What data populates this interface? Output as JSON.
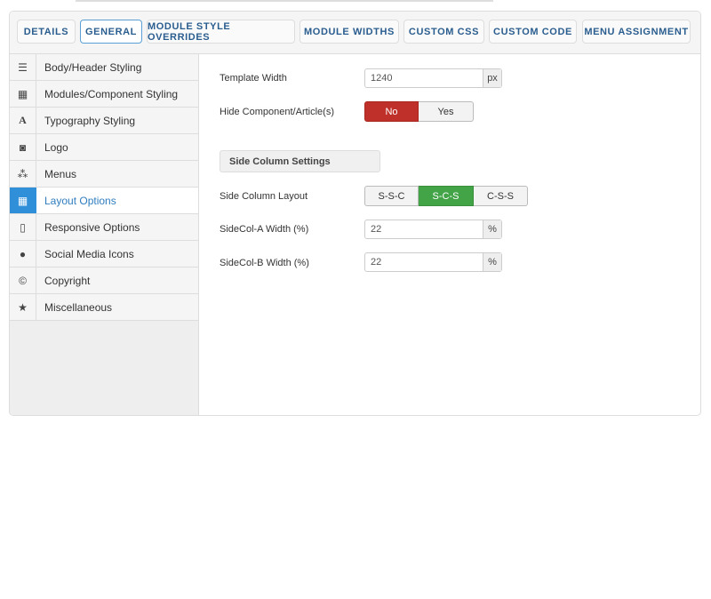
{
  "tabs": [
    "DETAILS",
    "GENERAL",
    "MODULE STYLE OVERRIDES",
    "MODULE WIDTHS",
    "CUSTOM CSS",
    "CUSTOM CODE",
    "MENU ASSIGNMENT"
  ],
  "active_tab": "GENERAL",
  "sidebar": {
    "items": [
      {
        "label": "Body/Header Styling",
        "icon": "bars-icon"
      },
      {
        "label": "Modules/Component Styling",
        "icon": "grid-icon"
      },
      {
        "label": "Typography Styling",
        "icon": "font-icon"
      },
      {
        "label": "Logo",
        "icon": "camera-icon"
      },
      {
        "label": "Menus",
        "icon": "cubes-icon"
      },
      {
        "label": "Layout Options",
        "icon": "layout-icon"
      },
      {
        "label": "Responsive Options",
        "icon": "tablet-icon"
      },
      {
        "label": "Social Media Icons",
        "icon": "users-icon"
      },
      {
        "label": "Copyright",
        "icon": "copyright-icon"
      },
      {
        "label": "Miscellaneous",
        "icon": "star-icon"
      }
    ],
    "active": "Layout Options"
  },
  "form": {
    "template_width": {
      "label": "Template Width",
      "value": "1240",
      "unit": "px"
    },
    "hide_component": {
      "label": "Hide Component/Article(s)",
      "options": [
        "No",
        "Yes"
      ],
      "selected": "No"
    },
    "section_title": "Side Column Settings",
    "side_column_layout": {
      "label": "Side Column Layout",
      "options": [
        "S-S-C",
        "S-C-S",
        "C-S-S"
      ],
      "selected": "S-C-S"
    },
    "sidecol_a": {
      "label": "SideCol-A Width (%)",
      "value": "22",
      "unit": "%"
    },
    "sidecol_b": {
      "label": "SideCol-B Width (%)",
      "value": "22",
      "unit": "%"
    }
  },
  "colors": {
    "accent": "#2f8fd8",
    "no_active": "#c0302a",
    "layout_active": "#43a347"
  }
}
